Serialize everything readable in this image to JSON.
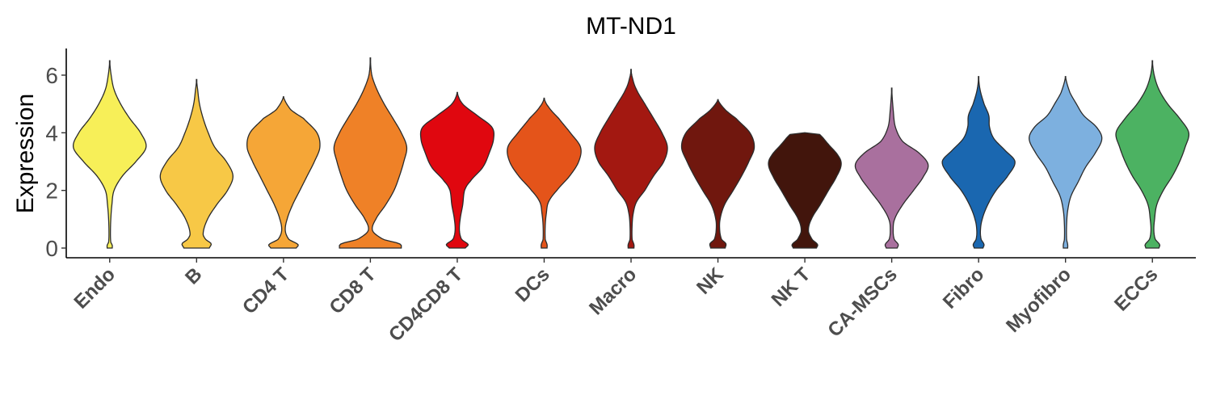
{
  "chart_data": {
    "type": "violin",
    "title": "MT-ND1",
    "xlabel": "",
    "ylabel": "Expression",
    "ylim": [
      -0.3,
      6.9
    ],
    "yticks": [
      0,
      2,
      4,
      6
    ],
    "grid": false,
    "legend": "none",
    "categories": [
      "Endo",
      "B",
      "CD4 T",
      "CD8 T",
      "CD4CD8 T",
      "DCs",
      "Macro",
      "NK",
      "NK T",
      "CA-MSCs",
      "Fibro",
      "Myofibro",
      "ECCs"
    ],
    "colors": [
      "#F7EF58",
      "#F7C846",
      "#F5A637",
      "#EF8127",
      "#E0070F",
      "#E4541A",
      "#A31811",
      "#70170E",
      "#42150C",
      "#A9709E",
      "#1A67B0",
      "#7DB0DF",
      "#4CB262"
    ],
    "series": [
      {
        "category": "Endo",
        "max": 6.5,
        "profile": [
          [
            0,
            0.07
          ],
          [
            0.1,
            0.07
          ],
          [
            0.2,
            0.03
          ],
          [
            0.5,
            0.02
          ],
          [
            1.0,
            0.03
          ],
          [
            1.5,
            0.06
          ],
          [
            2.0,
            0.12
          ],
          [
            2.5,
            0.35
          ],
          [
            3.0,
            0.72
          ],
          [
            3.5,
            1.0
          ],
          [
            4.0,
            0.85
          ],
          [
            4.5,
            0.55
          ],
          [
            5.0,
            0.3
          ],
          [
            5.5,
            0.12
          ],
          [
            6.0,
            0.04
          ],
          [
            6.5,
            0.0
          ]
        ]
      },
      {
        "category": "B",
        "max": 5.85,
        "profile": [
          [
            0,
            0.35
          ],
          [
            0.15,
            0.4
          ],
          [
            0.3,
            0.25
          ],
          [
            0.5,
            0.18
          ],
          [
            1.0,
            0.3
          ],
          [
            1.5,
            0.55
          ],
          [
            2.0,
            0.85
          ],
          [
            2.5,
            1.0
          ],
          [
            3.0,
            0.82
          ],
          [
            3.5,
            0.5
          ],
          [
            4.0,
            0.32
          ],
          [
            4.5,
            0.18
          ],
          [
            5.0,
            0.08
          ],
          [
            5.5,
            0.03
          ],
          [
            5.85,
            0.0
          ]
        ]
      },
      {
        "category": "CD4 T",
        "max": 5.25,
        "profile": [
          [
            0,
            0.35
          ],
          [
            0.12,
            0.4
          ],
          [
            0.3,
            0.15
          ],
          [
            0.6,
            0.05
          ],
          [
            1.0,
            0.1
          ],
          [
            1.5,
            0.25
          ],
          [
            2.0,
            0.45
          ],
          [
            2.5,
            0.65
          ],
          [
            3.0,
            0.85
          ],
          [
            3.5,
            1.0
          ],
          [
            4.0,
            0.92
          ],
          [
            4.5,
            0.55
          ],
          [
            4.8,
            0.2
          ],
          [
            5.25,
            0.0
          ]
        ]
      },
      {
        "category": "CD8 T",
        "max": 6.6,
        "profile": [
          [
            0,
            0.85
          ],
          [
            0.15,
            0.8
          ],
          [
            0.3,
            0.35
          ],
          [
            0.6,
            0.06
          ],
          [
            1.0,
            0.15
          ],
          [
            1.5,
            0.42
          ],
          [
            2.0,
            0.65
          ],
          [
            2.5,
            0.8
          ],
          [
            3.0,
            0.92
          ],
          [
            3.5,
            1.0
          ],
          [
            4.0,
            0.85
          ],
          [
            4.5,
            0.62
          ],
          [
            5.0,
            0.38
          ],
          [
            5.5,
            0.18
          ],
          [
            6.0,
            0.04
          ],
          [
            6.6,
            0.0
          ]
        ]
      },
      {
        "category": "CD4CD8 T",
        "max": 5.4,
        "profile": [
          [
            0,
            0.22
          ],
          [
            0.12,
            0.3
          ],
          [
            0.3,
            0.12
          ],
          [
            0.6,
            0.06
          ],
          [
            1.0,
            0.08
          ],
          [
            1.5,
            0.15
          ],
          [
            2.0,
            0.2
          ],
          [
            2.3,
            0.35
          ],
          [
            2.8,
            0.7
          ],
          [
            3.3,
            0.88
          ],
          [
            3.8,
            1.0
          ],
          [
            4.2,
            0.95
          ],
          [
            4.6,
            0.55
          ],
          [
            5.0,
            0.15
          ],
          [
            5.4,
            0.0
          ]
        ]
      },
      {
        "category": "DCs",
        "max": 5.2,
        "profile": [
          [
            0,
            0.08
          ],
          [
            0.12,
            0.08
          ],
          [
            0.3,
            0.03
          ],
          [
            0.8,
            0.03
          ],
          [
            1.2,
            0.06
          ],
          [
            1.6,
            0.12
          ],
          [
            2.0,
            0.35
          ],
          [
            2.5,
            0.7
          ],
          [
            3.0,
            0.95
          ],
          [
            3.5,
            1.0
          ],
          [
            4.0,
            0.72
          ],
          [
            4.5,
            0.4
          ],
          [
            4.9,
            0.12
          ],
          [
            5.2,
            0.0
          ]
        ]
      },
      {
        "category": "Macro",
        "max": 6.2,
        "profile": [
          [
            0,
            0.08
          ],
          [
            0.12,
            0.08
          ],
          [
            0.3,
            0.03
          ],
          [
            0.8,
            0.03
          ],
          [
            1.2,
            0.06
          ],
          [
            1.6,
            0.15
          ],
          [
            2.0,
            0.38
          ],
          [
            2.5,
            0.62
          ],
          [
            3.0,
            0.9
          ],
          [
            3.5,
            1.0
          ],
          [
            4.0,
            0.85
          ],
          [
            4.5,
            0.62
          ],
          [
            5.0,
            0.38
          ],
          [
            5.5,
            0.15
          ],
          [
            5.9,
            0.04
          ],
          [
            6.2,
            0.0
          ]
        ]
      },
      {
        "category": "NK",
        "max": 5.15,
        "profile": [
          [
            0,
            0.2
          ],
          [
            0.15,
            0.22
          ],
          [
            0.3,
            0.1
          ],
          [
            0.6,
            0.05
          ],
          [
            1.0,
            0.06
          ],
          [
            1.5,
            0.18
          ],
          [
            2.0,
            0.42
          ],
          [
            2.5,
            0.65
          ],
          [
            3.0,
            0.85
          ],
          [
            3.5,
            1.0
          ],
          [
            4.0,
            0.88
          ],
          [
            4.5,
            0.5
          ],
          [
            4.8,
            0.2
          ],
          [
            5.15,
            0.0
          ]
        ]
      },
      {
        "category": "NK T",
        "max": 4.0,
        "profile": [
          [
            0,
            0.32
          ],
          [
            0.12,
            0.35
          ],
          [
            0.3,
            0.2
          ],
          [
            0.6,
            0.1
          ],
          [
            1.0,
            0.18
          ],
          [
            1.5,
            0.42
          ],
          [
            2.0,
            0.65
          ],
          [
            2.5,
            0.88
          ],
          [
            2.9,
            1.0
          ],
          [
            3.2,
            0.92
          ],
          [
            3.6,
            0.65
          ],
          [
            3.95,
            0.4
          ],
          [
            4.0,
            0.0
          ]
        ]
      },
      {
        "category": "CA-MSCs",
        "max": 5.55,
        "profile": [
          [
            0,
            0.15
          ],
          [
            0.12,
            0.18
          ],
          [
            0.3,
            0.07
          ],
          [
            0.6,
            0.04
          ],
          [
            1.0,
            0.08
          ],
          [
            1.5,
            0.3
          ],
          [
            2.0,
            0.6
          ],
          [
            2.5,
            0.88
          ],
          [
            2.9,
            1.0
          ],
          [
            3.3,
            0.75
          ],
          [
            3.7,
            0.3
          ],
          [
            4.2,
            0.1
          ],
          [
            4.8,
            0.04
          ],
          [
            5.55,
            0.0
          ]
        ]
      },
      {
        "category": "Fibro",
        "max": 5.95,
        "profile": [
          [
            0,
            0.12
          ],
          [
            0.12,
            0.15
          ],
          [
            0.3,
            0.07
          ],
          [
            0.6,
            0.05
          ],
          [
            1.0,
            0.1
          ],
          [
            1.5,
            0.25
          ],
          [
            2.0,
            0.48
          ],
          [
            2.5,
            0.8
          ],
          [
            3.0,
            1.0
          ],
          [
            3.4,
            0.72
          ],
          [
            3.8,
            0.42
          ],
          [
            4.2,
            0.3
          ],
          [
            4.6,
            0.28
          ],
          [
            5.0,
            0.15
          ],
          [
            5.5,
            0.04
          ],
          [
            5.95,
            0.0
          ]
        ]
      },
      {
        "category": "Myofibro",
        "max": 5.95,
        "profile": [
          [
            0,
            0.06
          ],
          [
            0.12,
            0.06
          ],
          [
            0.3,
            0.03
          ],
          [
            0.8,
            0.03
          ],
          [
            1.3,
            0.06
          ],
          [
            1.8,
            0.15
          ],
          [
            2.3,
            0.35
          ],
          [
            2.8,
            0.55
          ],
          [
            3.3,
            0.82
          ],
          [
            3.8,
            1.0
          ],
          [
            4.2,
            0.85
          ],
          [
            4.6,
            0.5
          ],
          [
            5.0,
            0.3
          ],
          [
            5.4,
            0.12
          ],
          [
            5.95,
            0.0
          ]
        ]
      },
      {
        "category": "ECCs",
        "max": 6.5,
        "profile": [
          [
            0,
            0.18
          ],
          [
            0.12,
            0.2
          ],
          [
            0.3,
            0.08
          ],
          [
            0.6,
            0.04
          ],
          [
            1.0,
            0.06
          ],
          [
            1.5,
            0.12
          ],
          [
            2.0,
            0.3
          ],
          [
            2.5,
            0.55
          ],
          [
            3.0,
            0.75
          ],
          [
            3.5,
            0.9
          ],
          [
            4.0,
            1.0
          ],
          [
            4.5,
            0.75
          ],
          [
            5.0,
            0.42
          ],
          [
            5.5,
            0.18
          ],
          [
            6.0,
            0.05
          ],
          [
            6.5,
            0.0
          ]
        ]
      }
    ]
  }
}
